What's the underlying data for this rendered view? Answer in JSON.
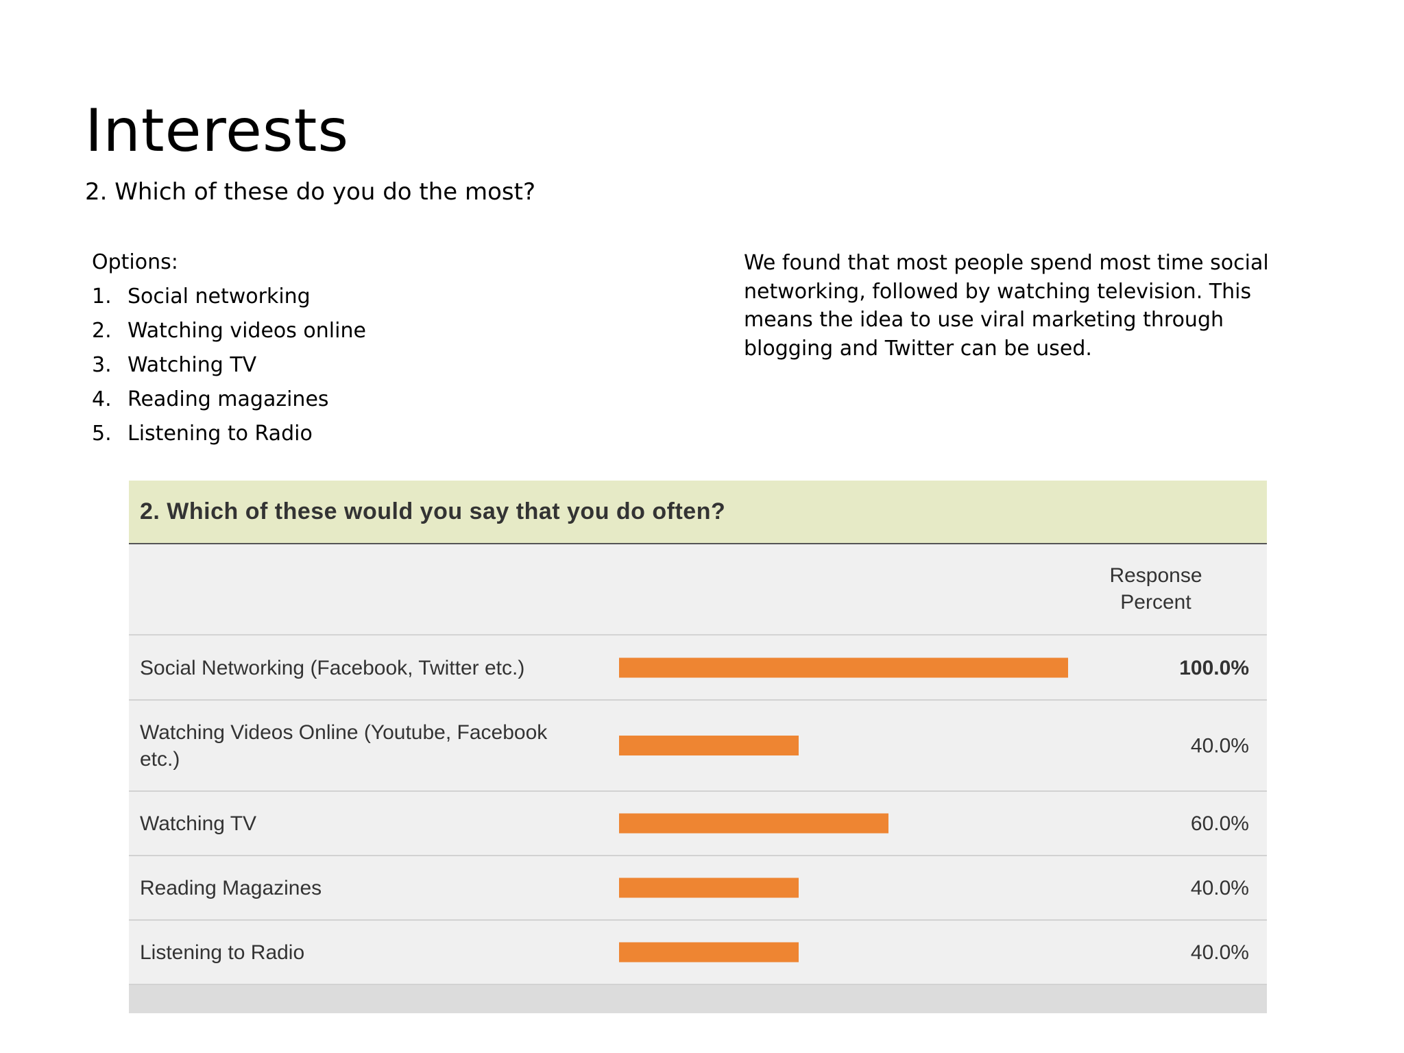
{
  "slide": {
    "title": "Interests",
    "subtitle": "2. Which of these do you do the most?"
  },
  "options": {
    "heading": "Options:",
    "items": [
      {
        "num": "1.",
        "label": "Social networking"
      },
      {
        "num": "2.",
        "label": "Watching videos online"
      },
      {
        "num": "3.",
        "label": "Watching TV"
      },
      {
        "num": "4.",
        "label": "Reading magazines"
      },
      {
        "num": "5.",
        "label": "Listening to Radio"
      }
    ]
  },
  "findings": {
    "text": "We found that most people  spend most time social networking, followed by watching television. This means the idea to use viral marketing through blogging and Twitter can be used."
  },
  "colors": {
    "bar": "#ee8532",
    "header_bg": "#e6eac6",
    "table_bg": "#f0f0f0",
    "footer_bg": "#dcdcdc"
  },
  "chart_data": {
    "type": "bar",
    "orientation": "horizontal",
    "title": "2. Which of these would you say that you do often?",
    "value_column_header": "Response Percent",
    "categories": [
      "Social Networking (Facebook, Twitter etc.)",
      "Watching Videos Online (Youtube, Facebook etc.)",
      "Watching TV",
      "Reading Magazines",
      "Listening to Radio"
    ],
    "values": [
      100.0,
      40.0,
      60.0,
      40.0,
      40.0
    ],
    "value_labels": [
      "100.0%",
      "40.0%",
      "60.0%",
      "40.0%",
      "40.0%"
    ],
    "xlim": [
      0,
      100
    ]
  }
}
